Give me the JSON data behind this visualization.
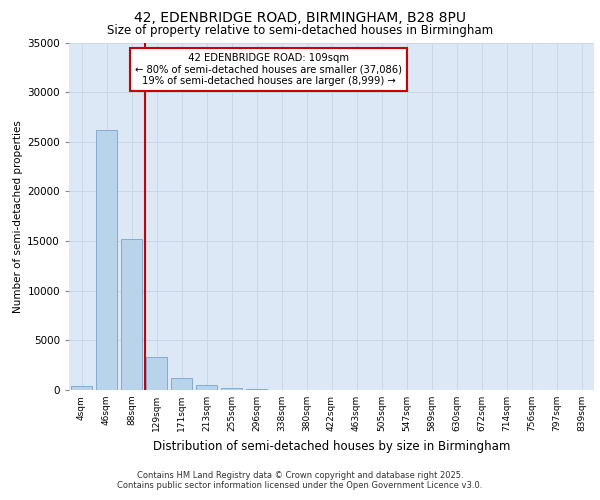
{
  "title1": "42, EDENBRIDGE ROAD, BIRMINGHAM, B28 8PU",
  "title2": "Size of property relative to semi-detached houses in Birmingham",
  "xlabel": "Distribution of semi-detached houses by size in Birmingham",
  "ylabel": "Number of semi-detached properties",
  "bar_color": "#b8d4ea",
  "bar_edge_color": "#6699cc",
  "background_color": "#dce8f5",
  "categories": [
    "4sqm",
    "46sqm",
    "88sqm",
    "129sqm",
    "171sqm",
    "213sqm",
    "255sqm",
    "296sqm",
    "338sqm",
    "380sqm",
    "422sqm",
    "463sqm",
    "505sqm",
    "547sqm",
    "589sqm",
    "630sqm",
    "672sqm",
    "714sqm",
    "756sqm",
    "797sqm",
    "839sqm"
  ],
  "values": [
    420,
    26200,
    15200,
    3350,
    1200,
    480,
    190,
    75,
    25,
    8,
    4,
    2,
    1,
    1,
    0,
    0,
    0,
    0,
    0,
    0,
    0
  ],
  "ylim": [
    0,
    35000
  ],
  "yticks": [
    0,
    5000,
    10000,
    15000,
    20000,
    25000,
    30000,
    35000
  ],
  "red_line_x": 2.55,
  "annotation_title": "42 EDENBRIDGE ROAD: 109sqm",
  "annotation_line1": "← 80% of semi-detached houses are smaller (37,086)",
  "annotation_line2": "19% of semi-detached houses are larger (8,999) →",
  "red_line_color": "#cc0000",
  "annotation_box_facecolor": "#ffffff",
  "annotation_box_edgecolor": "#cc0000",
  "footer1": "Contains HM Land Registry data © Crown copyright and database right 2025.",
  "footer2": "Contains public sector information licensed under the Open Government Licence v3.0."
}
